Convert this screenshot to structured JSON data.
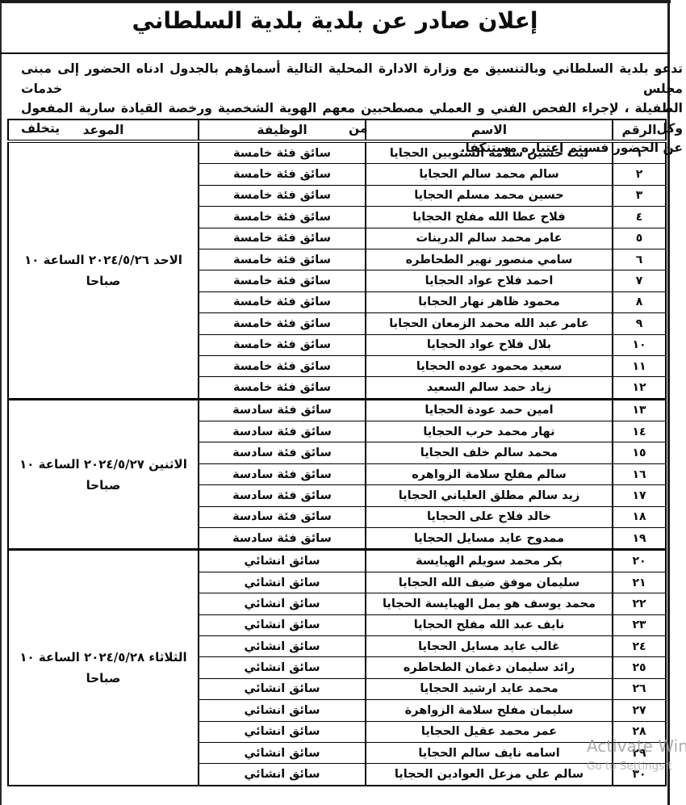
{
  "page": {
    "title": "إعلان صادر عن بلدية بلدية السلطاني",
    "intro_lines": [
      "تدعو بلدية السلطاني وبالتنسيق مع وزارة الادارة المحلية التالية أسماؤهم بالجدول ادناه الحضور إلى مبنى مجلس خدمات",
      "الطفيلة ، لإجراء الفحص الفني و العملي مصطحبين معهم الهوية الشخصية ورخصة القيادة سارية المفعول وكل من يتخلف",
      "عن الحضور فسيتم إعتباره مستنكفا."
    ]
  },
  "table": {
    "columns": [
      "الرقم",
      "الاسم",
      "الوظيفة",
      "الموعد"
    ],
    "groups": [
      {
        "date_line1": "الاحد ‭٢٠٢٤/٥/٢٦‬ الساعة ١٠",
        "date_line2": "صباحا",
        "rows": [
          {
            "num": "١",
            "name": "ليث حسين سلامه الشتويين الحجايا",
            "job": "سائق فئة خامسة"
          },
          {
            "num": "٢",
            "name": "سالم محمد سالم الحجايا",
            "job": "سائق فئة خامسة"
          },
          {
            "num": "٣",
            "name": "حسين محمد مسلم الحجايا",
            "job": "سائق فئة خامسة"
          },
          {
            "num": "٤",
            "name": "فلاح عطا الله مفلح الحجايا",
            "job": "سائق فئة خامسة"
          },
          {
            "num": "٥",
            "name": "عامر محمد سالم الدرينات",
            "job": "سائق فئة خامسة"
          },
          {
            "num": "٦",
            "name": "سامي منصور نهير الطحاطره",
            "job": "سائق فئة خامسة"
          },
          {
            "num": "٧",
            "name": "احمد فلاح عواد الحجايا",
            "job": "سائق فئة خامسة"
          },
          {
            "num": "٨",
            "name": "محمود ظاهر نهار الحجابا",
            "job": "سائق فئة خامسة"
          },
          {
            "num": "٩",
            "name": "عامر عبد الله محمد الزمعان الحجابا",
            "job": "سائق فئة خامسة"
          },
          {
            "num": "١٠",
            "name": "بلال فلاح عواد الحجايا",
            "job": "سائق فئة خامسة"
          },
          {
            "num": "١١",
            "name": "سعيد محمود عوده الحجايا",
            "job": "سائق فئة خامسة"
          },
          {
            "num": "١٢",
            "name": "زياد حمد سالم السعيد",
            "job": "سائق فئة خامسة"
          }
        ]
      },
      {
        "date_line1": "الاثنين ‭٢٠٢٤/٥/٢٧‬ الساعة ١٠",
        "date_line2": "صباحا",
        "rows": [
          {
            "num": "١٣",
            "name": "امين حمد عودة الحجايا",
            "job": "سائق فئة سادسة"
          },
          {
            "num": "١٤",
            "name": "نهار محمد حرب الحجايا",
            "job": "سائق فئة سادسة"
          },
          {
            "num": "١٥",
            "name": "محمد سالم خلف الحجايا",
            "job": "سائق فئة سادسة"
          },
          {
            "num": "١٦",
            "name": "سالم مفلح سلامة الزواهره",
            "job": "سائق فئة سادسة"
          },
          {
            "num": "١٧",
            "name": "زيد سالم مطلق العلياني الحجايا",
            "job": "سائق فئة سادسة"
          },
          {
            "num": "١٨",
            "name": "خالد فلاح على الحجايا",
            "job": "سائق فئة سادسة"
          },
          {
            "num": "١٩",
            "name": "ممدوح عايد مسايل الحجايا",
            "job": "سائق فئة سادسة"
          }
        ]
      },
      {
        "date_line1": "الثلاثاء ‭٢٠٢٤/٥/٢٨‬ الساعة ١٠",
        "date_line2": "صباحا",
        "rows": [
          {
            "num": "٢٠",
            "name": "بكر محمد سويلم الهيايسة",
            "job": "سائق انشائي"
          },
          {
            "num": "٢١",
            "name": "سليمان موفق ضيف الله الحجايا",
            "job": "سائق انشائي"
          },
          {
            "num": "٢٢",
            "name": "محمد يوسف هو يمل الهيايسة الحجايا",
            "job": "سائق انشائي"
          },
          {
            "num": "٢٣",
            "name": "نايف عبد الله مفلح الحجايا",
            "job": "سائق انشائي"
          },
          {
            "num": "٢٤",
            "name": "غالب عايد مسايل الحجايا",
            "job": "سائق انشائي"
          },
          {
            "num": "٢٥",
            "name": "رائد سليمان دغمان الطحاطره",
            "job": "سائق انشائي"
          },
          {
            "num": "٢٦",
            "name": "محمد عايد ارشيد الحجايا",
            "job": "سائق انشائي"
          },
          {
            "num": "٢٧",
            "name": "سليمان مفلح سلامة الزواهرة",
            "job": "سائق انشائي"
          },
          {
            "num": "٢٨",
            "name": "عمر محمد عقيل الحجايا",
            "job": "سائق انشائي"
          },
          {
            "num": "٢٩",
            "name": "اسامه نايف سالم الحجايا",
            "job": "سائق انشائي"
          },
          {
            "num": "٣٠",
            "name": "سالم علي مزعل العوادين الحجايا",
            "job": "سائق انشائي"
          }
        ]
      }
    ]
  },
  "watermark": {
    "line1": "Activate Win",
    "line2": "Go to Settings t"
  }
}
